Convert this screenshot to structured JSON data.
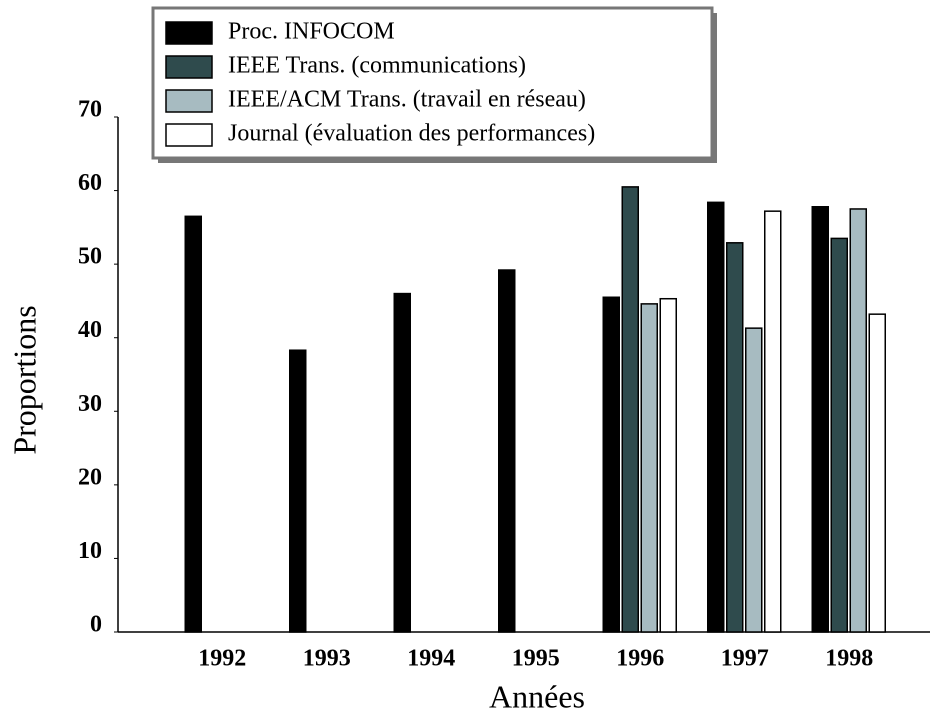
{
  "chart_data": {
    "type": "bar",
    "xlabel": "Années",
    "ylabel": "Proportions",
    "categories": [
      "1992",
      "1993",
      "1994",
      "1995",
      "1996",
      "1997",
      "1998"
    ],
    "series": [
      {
        "name": "Proc. INFOCOM",
        "color": "#000000",
        "values": [
          56.5,
          38.3,
          46,
          49.2,
          45.5,
          58.4,
          57.8
        ]
      },
      {
        "name": "IEEE Trans. (communications)",
        "color": "#2f4b4d",
        "values": [
          null,
          null,
          null,
          null,
          60.5,
          52.9,
          53.5
        ]
      },
      {
        "name": "IEEE/ACM Trans. (travail en réseau)",
        "color": "#a7bbc1",
        "values": [
          null,
          null,
          null,
          null,
          44.6,
          41.3,
          57.5
        ]
      },
      {
        "name": "Journal (évaluation des performances)",
        "color": "#ffffff",
        "values": [
          null,
          null,
          null,
          null,
          45.3,
          57.2,
          43.2
        ]
      }
    ],
    "ylim": [
      0,
      70
    ],
    "yticks": [
      0,
      10,
      20,
      30,
      40,
      50,
      60,
      70
    ],
    "legend": "top"
  }
}
